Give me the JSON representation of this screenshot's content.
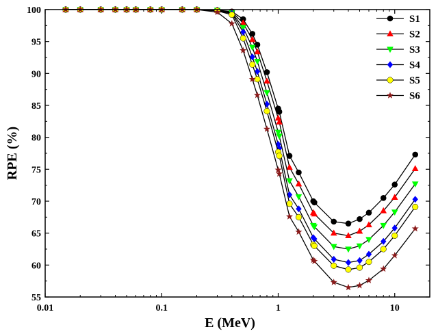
{
  "chart_data": {
    "type": "line",
    "xscale": "log",
    "xlabel": "E (MeV)",
    "ylabel": "RPE (%)",
    "xlim": [
      0.01,
      20
    ],
    "ylim": [
      55,
      100
    ],
    "xticks": [
      {
        "value": 0.01,
        "label": "0.01"
      },
      {
        "value": 0.1,
        "label": "0.1"
      },
      {
        "value": 1,
        "label": "1"
      },
      {
        "value": 10,
        "label": "10"
      }
    ],
    "yticks": [
      {
        "value": 55,
        "label": "55"
      },
      {
        "value": 60,
        "label": "60"
      },
      {
        "value": 65,
        "label": "65"
      },
      {
        "value": 70,
        "label": "70"
      },
      {
        "value": 75,
        "label": "75"
      },
      {
        "value": 80,
        "label": "80"
      },
      {
        "value": 85,
        "label": "85"
      },
      {
        "value": 90,
        "label": "90"
      },
      {
        "value": 95,
        "label": "95"
      },
      {
        "value": 100,
        "label": "100"
      }
    ],
    "legend_position": "top-right",
    "x": [
      0.015,
      0.02,
      0.03,
      0.04,
      0.05,
      0.06,
      0.08,
      0.1,
      0.15,
      0.2,
      0.3,
      0.4,
      0.5,
      0.6,
      0.662,
      0.8,
      1.0,
      1.022,
      1.25,
      1.5,
      2.0,
      2.044,
      3.0,
      4.0,
      5.0,
      6.0,
      8.0,
      10.0,
      15.0
    ],
    "series": [
      {
        "name": "S1",
        "color": "#000000",
        "marker": "circle",
        "values": [
          100,
          100,
          100,
          100,
          100,
          100,
          100,
          100,
          100,
          100,
          99.9,
          99.7,
          98.5,
          96.2,
          94.5,
          90.2,
          84.5,
          84.0,
          77.1,
          74.5,
          70.0,
          69.8,
          66.8,
          66.5,
          67.2,
          68.2,
          70.5,
          72.6,
          77.3
        ]
      },
      {
        "name": "S2",
        "color": "#ff0000",
        "marker": "triangle-up",
        "values": [
          100,
          100,
          100,
          100,
          100,
          100,
          100,
          100,
          100,
          100,
          99.9,
          99.6,
          97.9,
          95.3,
          93.4,
          88.8,
          83.0,
          82.4,
          75.3,
          72.7,
          68.2,
          68.0,
          65.0,
          64.6,
          65.3,
          66.3,
          68.5,
          70.6,
          75.1
        ]
      },
      {
        "name": "S3",
        "color": "#00ff00",
        "marker": "triangle-down",
        "values": [
          100,
          100,
          100,
          100,
          100,
          100,
          100,
          100,
          100,
          100,
          99.9,
          99.5,
          97.2,
          94.1,
          91.9,
          87.0,
          80.8,
          80.2,
          73.2,
          70.7,
          66.2,
          66.0,
          62.9,
          62.5,
          63.0,
          64.0,
          66.2,
          68.3,
          72.7
        ]
      },
      {
        "name": "S4",
        "color": "#0000ff",
        "marker": "diamond",
        "values": [
          100,
          100,
          100,
          100,
          100,
          100,
          100,
          100,
          100,
          100,
          99.8,
          99.4,
          96.5,
          92.6,
          90.3,
          85.2,
          78.9,
          78.3,
          71.0,
          68.8,
          64.3,
          64.1,
          60.9,
          60.4,
          60.7,
          61.7,
          63.7,
          65.8,
          70.3
        ]
      },
      {
        "name": "S5",
        "color": "#ffff00",
        "marker": "circle",
        "values": [
          100,
          100,
          100,
          100,
          100,
          100,
          100,
          100,
          100,
          100,
          99.8,
          99.2,
          95.5,
          91.4,
          89.1,
          84.1,
          77.7,
          77.1,
          69.6,
          67.5,
          63.2,
          63.0,
          59.9,
          59.3,
          59.6,
          60.5,
          62.5,
          64.6,
          69.1
        ]
      },
      {
        "name": "S6",
        "color": "#8b1a1a",
        "marker": "star",
        "values": [
          100,
          100,
          100,
          100,
          100,
          100,
          100,
          100,
          100,
          100,
          99.6,
          97.8,
          93.6,
          89.1,
          86.6,
          81.3,
          74.9,
          74.3,
          67.6,
          65.2,
          60.8,
          60.6,
          57.3,
          56.5,
          56.8,
          57.6,
          59.4,
          61.5,
          65.7
        ]
      }
    ]
  }
}
